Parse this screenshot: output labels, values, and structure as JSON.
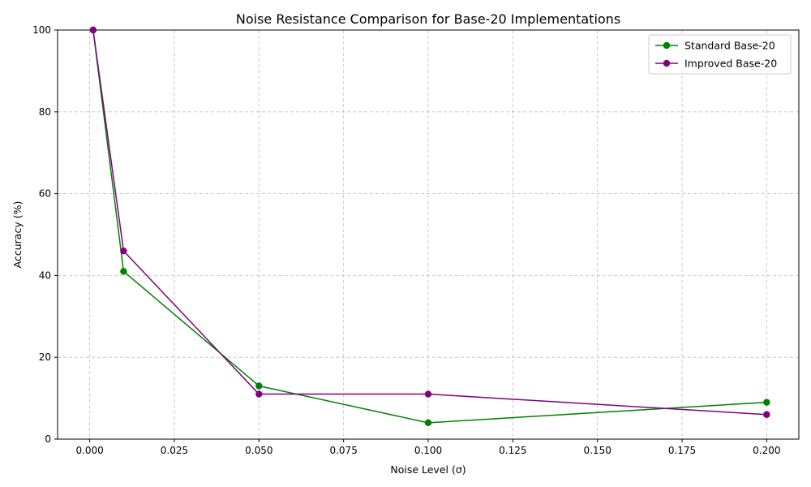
{
  "chart_data": {
    "type": "line",
    "title": "Noise Resistance Comparison for Base-20 Implementations",
    "xlabel": "Noise Level (σ)",
    "ylabel": "Accuracy (%)",
    "xlim": [
      -0.0095,
      0.2095
    ],
    "ylim": [
      0,
      100
    ],
    "xticks": [
      0.0,
      0.025,
      0.05,
      0.075,
      0.1,
      0.125,
      0.15,
      0.175,
      0.2
    ],
    "xtick_labels": [
      "0.000",
      "0.025",
      "0.050",
      "0.075",
      "0.100",
      "0.125",
      "0.150",
      "0.175",
      "0.200"
    ],
    "yticks": [
      0,
      20,
      40,
      60,
      80,
      100
    ],
    "ytick_labels": [
      "0",
      "20",
      "40",
      "60",
      "80",
      "100"
    ],
    "grid": true,
    "legend_position": "top-right",
    "x": [
      0.001,
      0.01,
      0.05,
      0.1,
      0.2
    ],
    "series": [
      {
        "name": "Standard Base-20",
        "color": "#008000",
        "values": [
          100,
          41,
          13,
          4,
          9
        ]
      },
      {
        "name": "Improved Base-20",
        "color": "#800080",
        "values": [
          100,
          46,
          11,
          11,
          6
        ]
      }
    ]
  }
}
